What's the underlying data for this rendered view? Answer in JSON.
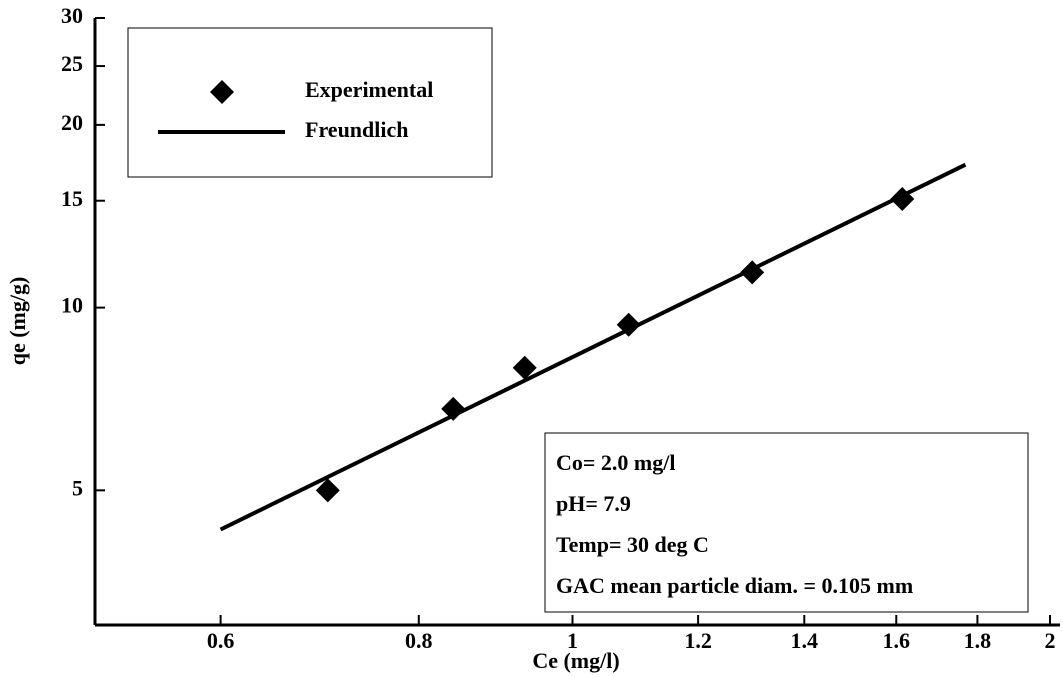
{
  "chart_data": {
    "type": "scatter",
    "x_label": "Ce (mg/l)",
    "y_label": "qe (mg/g)",
    "xlim": [
      0.5,
      2
    ],
    "ylim": [
      3,
      30
    ],
    "x_log": true,
    "y_log": true,
    "xticks": [
      0.6,
      0.8,
      1,
      1.2,
      1.4,
      1.6,
      1.8,
      2
    ],
    "yticks": [
      5,
      10,
      15,
      20,
      25,
      30
    ],
    "legend": "upper left",
    "series": [
      {
        "name": "Experimental",
        "mode": "markers",
        "color": "#000000",
        "x": [
          0.701,
          0.841,
          0.933,
          1.085,
          1.298,
          1.614
        ],
        "values": [
          5.0,
          6.81,
          7.96,
          9.37,
          11.43,
          15.1
        ]
      },
      {
        "name": "Freundlich",
        "mode": "line",
        "color": "#000000",
        "x": [
          0.6,
          1.769
        ],
        "values": [
          4.31,
          17.2
        ]
      }
    ],
    "annotations": [
      "Co= 2.0 mg/l",
      "pH= 7.9",
      "Temp= 30 deg C",
      "GAC mean particle diam. = 0.105 mm"
    ]
  }
}
